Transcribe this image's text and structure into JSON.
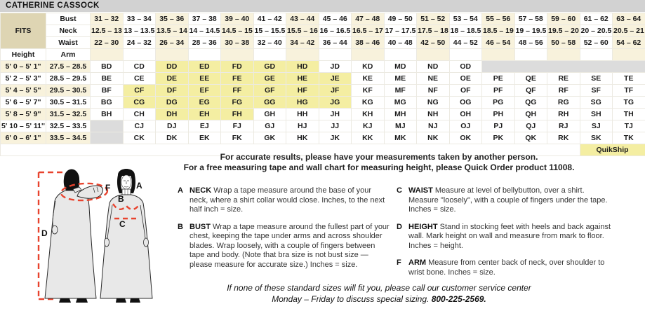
{
  "title": "CATHERINE CASSOCK",
  "fits": {
    "label": "FITS",
    "measure_labels": [
      "Bust",
      "Neck",
      "Waist"
    ]
  },
  "columns": {
    "bust": [
      "31 – 32",
      "33 – 34",
      "35 – 36",
      "37 – 38",
      "39 – 40",
      "41 – 42",
      "43 – 44",
      "45 – 46",
      "47 – 48",
      "49 – 50",
      "51 – 52",
      "53 – 54",
      "55 – 56",
      "57 – 58",
      "59 – 60",
      "61 – 62",
      "63 – 64"
    ],
    "neck": [
      "12.5 – 13",
      "13 – 13.5",
      "13.5 – 14",
      "14 – 14.5",
      "14.5 – 15",
      "15 – 15.5",
      "15.5 – 16",
      "16 – 16.5",
      "16.5 – 17",
      "17 – 17.5",
      "17.5 – 18",
      "18 – 18.5",
      "18.5 – 19",
      "19 – 19.5",
      "19.5 – 20",
      "20 – 20.5",
      "20.5 – 21"
    ],
    "waist": [
      "22 – 30",
      "24 – 32",
      "26 – 34",
      "28 – 36",
      "30 – 38",
      "32 – 40",
      "34 – 42",
      "36 – 44",
      "38 – 46",
      "40 – 48",
      "42 – 50",
      "44 – 52",
      "46 – 54",
      "48 – 56",
      "50 – 58",
      "52 – 60",
      "54 – 62"
    ]
  },
  "height_header": "Height",
  "arm_header": "Arm",
  "rows": [
    {
      "height": "5' 0 – 5' 1''",
      "arm": "27.5 – 28.5",
      "codes": [
        "BD",
        "CD",
        "DD",
        "ED",
        "FD",
        "GD",
        "HD",
        "JD",
        "KD",
        "MD",
        "ND",
        "OD",
        null,
        null,
        null,
        null,
        null
      ]
    },
    {
      "height": "5' 2 – 5' 3''",
      "arm": "28.5 – 29.5",
      "codes": [
        "BE",
        "CE",
        "DE",
        "EE",
        "FE",
        "GE",
        "HE",
        "JE",
        "KE",
        "ME",
        "NE",
        "OE",
        "PE",
        "QE",
        "RE",
        "SE",
        "TE"
      ]
    },
    {
      "height": "5' 4 – 5' 5''",
      "arm": "29.5 – 30.5",
      "codes": [
        "BF",
        "CF",
        "DF",
        "EF",
        "FF",
        "GF",
        "HF",
        "JF",
        "KF",
        "MF",
        "NF",
        "OF",
        "PF",
        "QF",
        "RF",
        "SF",
        "TF"
      ]
    },
    {
      "height": "5' 6 – 5' 7''",
      "arm": "30.5 – 31.5",
      "codes": [
        "BG",
        "CG",
        "DG",
        "EG",
        "FG",
        "GG",
        "HG",
        "JG",
        "KG",
        "MG",
        "NG",
        "OG",
        "PG",
        "QG",
        "RG",
        "SG",
        "TG"
      ]
    },
    {
      "height": "5' 8 – 5' 9''",
      "arm": "31.5 – 32.5",
      "codes": [
        "BH",
        "CH",
        "DH",
        "EH",
        "FH",
        "GH",
        "HH",
        "JH",
        "KH",
        "MH",
        "NH",
        "OH",
        "PH",
        "QH",
        "RH",
        "SH",
        "TH"
      ]
    },
    {
      "height": "5' 10 – 5' 11''",
      "arm": "32.5 – 33.5",
      "codes": [
        null,
        "CJ",
        "DJ",
        "EJ",
        "FJ",
        "GJ",
        "HJ",
        "JJ",
        "KJ",
        "MJ",
        "NJ",
        "OJ",
        "PJ",
        "QJ",
        "RJ",
        "SJ",
        "TJ"
      ]
    },
    {
      "height": "6' 0 – 6' 1''",
      "arm": "33.5 – 34.5",
      "codes": [
        null,
        "CK",
        "DK",
        "EK",
        "FK",
        "GK",
        "HK",
        "JK",
        "KK",
        "MK",
        "NK",
        "OK",
        "PK",
        "QK",
        "RK",
        "SK",
        "TK"
      ]
    }
  ],
  "highlighted_codes": [
    "DD",
    "ED",
    "FD",
    "GD",
    "HD",
    "DE",
    "EE",
    "FE",
    "GE",
    "HE",
    "JE",
    "CF",
    "DF",
    "EF",
    "FF",
    "GF",
    "HF",
    "JF",
    "CG",
    "DG",
    "EG",
    "FG",
    "GG",
    "HG",
    "JG",
    "DH",
    "EH",
    "FH"
  ],
  "quikship_label": "QuikShip",
  "note": {
    "line1": "For accurate results, please have your measurements taken by another person.",
    "line2": "For a free measuring tape and wall chart for measuring height, please Quick Order product 11008."
  },
  "instructions_left": [
    {
      "letter": "A",
      "term": "NECK",
      "text": "Wrap a tape measure around the base of your neck, where a shirt collar would close. Inches, to the next half inch = size."
    },
    {
      "letter": "B",
      "term": "BUST",
      "text": "Wrap a tape measure around the fullest part of your chest, keeping the tape under arms and across shoulder blades. Wrap loosely, with a couple of fingers between tape and body. (Note that bra size is not bust size — please measure for accurate size.) Inches = size."
    }
  ],
  "instructions_right": [
    {
      "letter": "C",
      "term": "WAIST",
      "text": "Measure at level of bellybutton, over a shirt. Measure \"loosely\", with a couple of fingers under the tape. Inches = size."
    },
    {
      "letter": "D",
      "term": "HEIGHT",
      "text": "Stand in stocking feet with heels and back against wall. Mark height on wall and measure from mark to floor. Inches = height."
    },
    {
      "letter": "F",
      "term": "ARM",
      "text": "Measure from center back of neck, over shoulder to wrist bone. Inches = size."
    }
  ],
  "footer": {
    "line1": "If none of these standard sizes will fit you, please call our customer service center",
    "line2": "Monday – Friday to discuss special sizing.",
    "phone": "800-225-2569."
  },
  "figure": {
    "labels": {
      "a": "A",
      "b": "B",
      "c": "C",
      "d": "D",
      "f": "F"
    }
  },
  "colors": {
    "accent_red": "#e8432e",
    "highlight_yellow": "#f4eea2",
    "column_cream": "#f8f2dc",
    "fits_tan": "#ded5b3",
    "title_gray": "#d2d2d2",
    "empty_gray": "#dcdcdc"
  }
}
